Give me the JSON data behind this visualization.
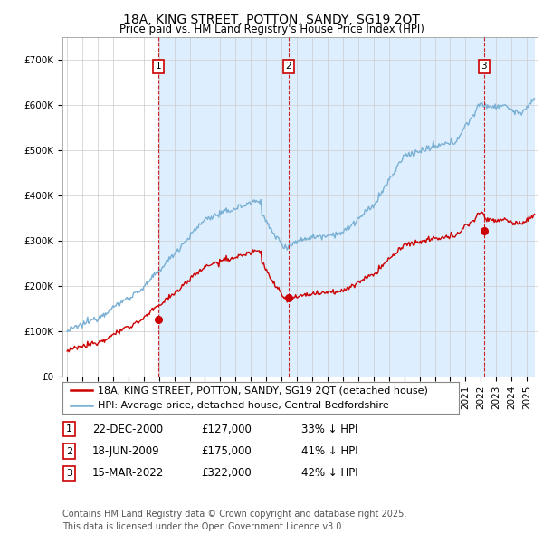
{
  "title": "18A, KING STREET, POTTON, SANDY, SG19 2QT",
  "subtitle": "Price paid vs. HM Land Registry's House Price Index (HPI)",
  "ylim": [
    0,
    750000
  ],
  "yticks": [
    0,
    100000,
    200000,
    300000,
    400000,
    500000,
    600000,
    700000
  ],
  "ytick_labels": [
    "£0",
    "£100K",
    "£200K",
    "£300K",
    "£400K",
    "£500K",
    "£600K",
    "£700K"
  ],
  "sale_color": "#cc0000",
  "hpi_color": "#7ab0d4",
  "shade_color": "#ddeeff",
  "sale_label": "18A, KING STREET, POTTON, SANDY, SG19 2QT (detached house)",
  "hpi_label": "HPI: Average price, detached house, Central Bedfordshire",
  "transactions": [
    {
      "num": 1,
      "date": "22-DEC-2000",
      "price": 127000,
      "hpi_pct": "33% ↓ HPI",
      "year": 2000.97
    },
    {
      "num": 2,
      "date": "18-JUN-2009",
      "price": 175000,
      "hpi_pct": "41% ↓ HPI",
      "year": 2009.46
    },
    {
      "num": 3,
      "date": "15-MAR-2022",
      "price": 322000,
      "hpi_pct": "42% ↓ HPI",
      "year": 2022.2
    }
  ],
  "footer": "Contains HM Land Registry data © Crown copyright and database right 2025.\nThis data is licensed under the Open Government Licence v3.0.",
  "background_color": "#ffffff",
  "grid_color": "#cccccc",
  "title_fontsize": 10,
  "subtitle_fontsize": 8.5,
  "tick_fontsize": 7.5,
  "legend_fontsize": 8,
  "table_fontsize": 8.5,
  "footer_fontsize": 7,
  "xmin": 1995,
  "xmax": 2025.5
}
